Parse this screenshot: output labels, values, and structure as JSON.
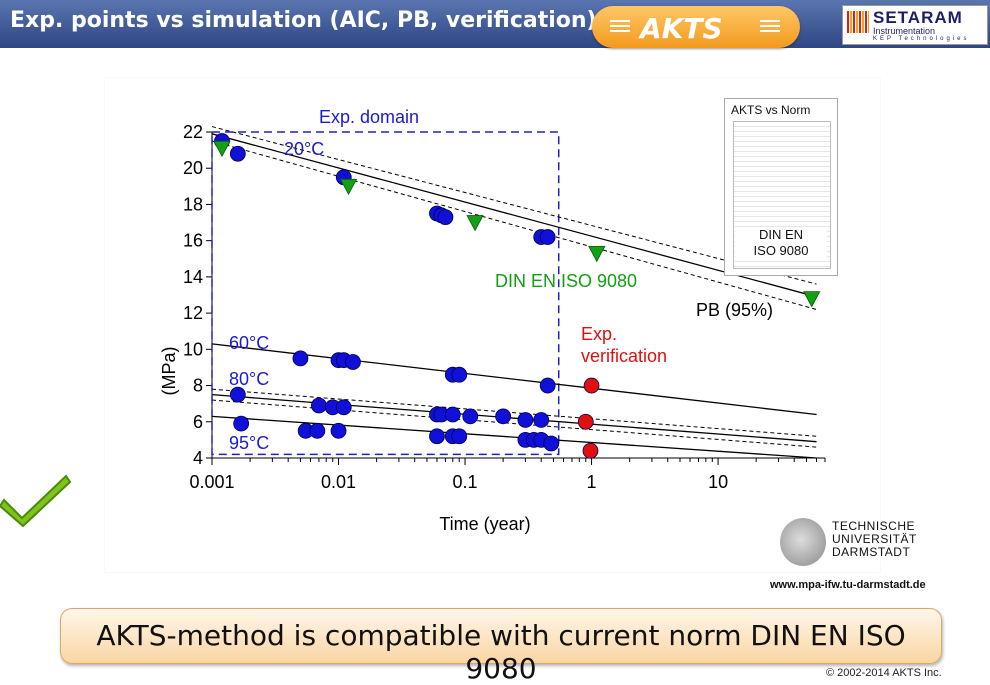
{
  "header": {
    "title": "Exp. points vs simulation (AIC, PB, verification)",
    "akts_logo": "AKTS",
    "setaram_name": "SETARAM",
    "setaram_sub": "Instrumentation",
    "setaram_kep": "KEP Technologies"
  },
  "norm_box": {
    "title": "AKTS vs Norm",
    "label_line1": "DIN EN",
    "label_line2": "ISO 9080"
  },
  "tud": {
    "line1": "TECHNISCHE",
    "line2": "UNIVERSITÄT",
    "line3": "DARMSTADT"
  },
  "url": "www.mpa-ifw.tu-darmstadt.de",
  "banner": "AKTS-method is compatible with current norm DIN EN ISO 9080",
  "copyright": "© 2002-2014  AKTS Inc.",
  "colors": {
    "header": "#2e4684",
    "blue_points": "#1010d8",
    "green_points": "#14a014",
    "red_points": "#e01010",
    "annot_blue": "#1a1ad0",
    "annot_green": "#10a010",
    "annot_red": "#e01010"
  },
  "chart_data": {
    "type": "scatter",
    "xscale": "log",
    "xlim": [
      0.001,
      70
    ],
    "ylim": [
      4,
      22
    ],
    "xlabel": "Time (year)",
    "ylabel": "(MPa)",
    "xticks": [
      "0.001",
      "0.01",
      "0.1",
      "1",
      "10"
    ],
    "xtick_values": [
      0.001,
      0.01,
      0.1,
      1,
      10
    ],
    "yticks": [
      4,
      6,
      8,
      10,
      12,
      14,
      16,
      18,
      20,
      22
    ],
    "grid": false,
    "annotations": {
      "exp_domain": "Exp. domain",
      "t20": "20°C",
      "t60": "60°C",
      "t80": "80°C",
      "t95": "95°C",
      "din": "DIN EN ISO 9080",
      "pb": "PB (95%)",
      "verif1": "Exp.",
      "verif2": "verification"
    },
    "exp_domain_box": {
      "x": [
        0.001,
        0.55
      ],
      "y": [
        4.2,
        22
      ]
    },
    "series": [
      {
        "name": "20°C",
        "marker": "circle",
        "color": "#1010d8",
        "x": [
          0.0012,
          0.0016,
          0.011,
          0.06,
          0.065,
          0.07,
          0.4,
          0.45
        ],
        "y": [
          21.5,
          20.8,
          19.5,
          17.5,
          17.4,
          17.3,
          16.2,
          16.2
        ]
      },
      {
        "name": "DIN EN ISO 9080",
        "marker": "triangle",
        "color": "#14a014",
        "x": [
          0.0012,
          0.012,
          0.12,
          1.1,
          55
        ],
        "y": [
          21.1,
          19.0,
          17.0,
          15.3,
          12.8
        ]
      },
      {
        "name": "60°C",
        "marker": "circle",
        "color": "#1010d8",
        "x": [
          0.005,
          0.01,
          0.011,
          0.013,
          0.08,
          0.09,
          0.45
        ],
        "y": [
          9.5,
          9.4,
          9.4,
          9.3,
          8.6,
          8.6,
          8.0
        ]
      },
      {
        "name": "80°C",
        "marker": "circle",
        "color": "#1010d8",
        "x": [
          0.0016,
          0.007,
          0.009,
          0.011,
          0.06,
          0.065,
          0.08,
          0.11,
          0.2,
          0.3,
          0.4
        ],
        "y": [
          7.5,
          6.9,
          6.8,
          6.8,
          6.4,
          6.4,
          6.4,
          6.3,
          6.3,
          6.1,
          6.1
        ]
      },
      {
        "name": "95°C",
        "marker": "circle",
        "color": "#1010d8",
        "x": [
          0.0017,
          0.0055,
          0.0068,
          0.01,
          0.06,
          0.08,
          0.09,
          0.3,
          0.35,
          0.4,
          0.48
        ],
        "y": [
          5.9,
          5.5,
          5.5,
          5.5,
          5.2,
          5.2,
          5.2,
          5.0,
          5.0,
          5.0,
          4.8
        ]
      },
      {
        "name": "Exp. verification",
        "marker": "circle",
        "color": "#e01010",
        "x": [
          1.0,
          0.9,
          0.98
        ],
        "y": [
          8.0,
          6.0,
          4.4
        ]
      }
    ],
    "curves": [
      {
        "x": [
          0.001,
          60
        ],
        "y": [
          21.9,
          12.9
        ],
        "style": "solid"
      },
      {
        "x": [
          0.001,
          60
        ],
        "y": [
          22.3,
          13.6
        ],
        "style": "dashed"
      },
      {
        "x": [
          0.001,
          60
        ],
        "y": [
          21.5,
          12.2
        ],
        "style": "dashed"
      },
      {
        "x": [
          0.001,
          60
        ],
        "y": [
          10.3,
          6.4
        ],
        "style": "solid"
      },
      {
        "x": [
          0.001,
          60
        ],
        "y": [
          7.8,
          5.2
        ],
        "style": "dashed"
      },
      {
        "x": [
          0.001,
          60
        ],
        "y": [
          7.5,
          4.9
        ],
        "style": "solid"
      },
      {
        "x": [
          0.001,
          60
        ],
        "y": [
          7.2,
          4.6
        ],
        "style": "dashed"
      },
      {
        "x": [
          0.001,
          60
        ],
        "y": [
          6.3,
          4.0
        ],
        "style": "solid"
      }
    ]
  }
}
